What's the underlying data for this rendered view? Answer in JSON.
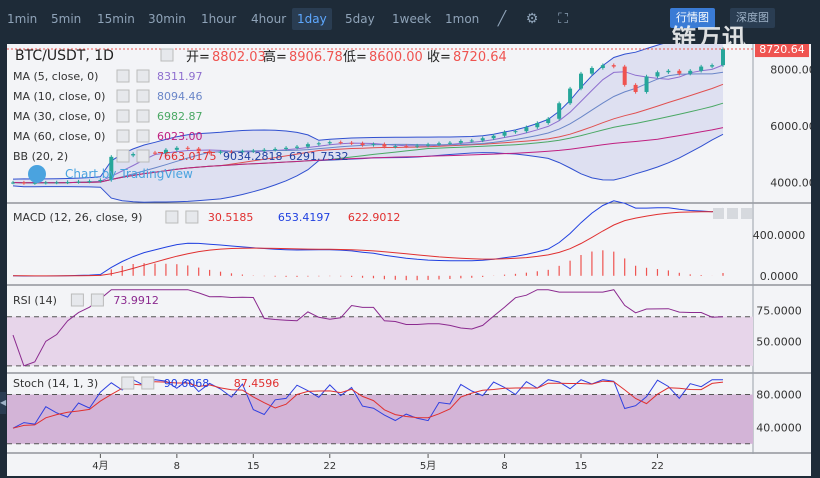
{
  "toolbar": {
    "timeframes": [
      "1min",
      "5min",
      "15min",
      "30min",
      "1hour",
      "4hour",
      "1day",
      "5day",
      "1week",
      "1mon"
    ],
    "active": "1day",
    "icons": [
      "chart-type-icon",
      "settings-icon",
      "fullscreen-icon"
    ]
  },
  "tabs": {
    "line": "行情图",
    "depth": "深度图"
  },
  "watermark": "链万讯",
  "symbol": {
    "title": "BTC/USDT, 1D",
    "open_label": "开=",
    "open": "8802.03",
    "high_label": "高=",
    "high": "8906.78",
    "low_label": "低=",
    "low": "8600.00",
    "close_label": "收=",
    "close": "8720.64",
    "last_price": "8720.64"
  },
  "studies": {
    "ma5": {
      "label": "MA (5, close, 0)",
      "value": "8311.97",
      "color": "#8e6fcf"
    },
    "ma10": {
      "label": "MA (10, close, 0)",
      "value": "8094.46",
      "color": "#6a86c8"
    },
    "ma30": {
      "label": "MA (30, close, 0)",
      "value": "6982.87",
      "color": "#4aa864"
    },
    "ma60": {
      "label": "MA (60, close, 0)",
      "value": "6023.00",
      "color": "#c02080"
    },
    "bb": {
      "label": "BB (20, 2)",
      "v1": "7663.0175",
      "v2": "9034.2818",
      "v3": "6291.7532"
    },
    "tv_logo": "Chart by TradingView",
    "macd": {
      "label": "MACD (12, 26, close, 9)",
      "v1": "30.5185",
      "v2": "653.4197",
      "v3": "622.9012"
    },
    "rsi": {
      "label": "RSI (14)",
      "value": "73.9912"
    },
    "stoch": {
      "label": "Stoch (14, 1, 3)",
      "v1": "90.6068",
      "v2": "87.4596"
    }
  },
  "axes": {
    "price_ticks": [
      "8000.00",
      "6000.00",
      "4000.00"
    ],
    "macd_ticks": [
      "400.0000",
      "0.0000"
    ],
    "rsi_ticks": [
      "75.0000",
      "50.0000"
    ],
    "stoch_ticks": [
      "80.0000",
      "40.0000"
    ],
    "x_ticks": [
      "4月",
      "8",
      "15",
      "22",
      "5月",
      "8",
      "15",
      "22"
    ]
  },
  "colors": {
    "up": "#26a69a",
    "down": "#ef5350",
    "band": "#c5c8e8",
    "rsi_fill": "#e7d5ea",
    "stoch_fill": "#d3b4d7"
  },
  "chart_data": {
    "type": "candlestick",
    "x_dates": [
      "03-24",
      "03-25",
      "03-26",
      "03-27",
      "03-28",
      "03-29",
      "03-30",
      "03-31",
      "04-01",
      "04-02",
      "04-03",
      "04-04",
      "04-05",
      "04-06",
      "04-07",
      "04-08",
      "04-09",
      "04-10",
      "04-11",
      "04-12",
      "04-13",
      "04-14",
      "04-15",
      "04-16",
      "04-17",
      "04-18",
      "04-19",
      "04-20",
      "04-21",
      "04-22",
      "04-23",
      "04-24",
      "04-25",
      "04-26",
      "04-27",
      "04-28",
      "04-29",
      "04-30",
      "05-01",
      "05-02",
      "05-03",
      "05-04",
      "05-05",
      "05-06",
      "05-07",
      "05-08",
      "05-09",
      "05-10",
      "05-11",
      "05-12",
      "05-13",
      "05-14",
      "05-15",
      "05-16",
      "05-17",
      "05-18",
      "05-19",
      "05-20",
      "05-21",
      "05-22",
      "05-23",
      "05-24",
      "05-25",
      "05-26",
      "05-27",
      "05-28"
    ],
    "close": [
      3990,
      3970,
      3980,
      3990,
      3995,
      4010,
      4025,
      4040,
      4080,
      4900,
      4950,
      5000,
      5050,
      5020,
      5150,
      5220,
      5190,
      5100,
      5050,
      5080,
      5070,
      5100,
      5120,
      5150,
      5180,
      5220,
      5260,
      5350,
      5380,
      5420,
      5400,
      5380,
      5320,
      5350,
      5260,
      5280,
      5270,
      5300,
      5340,
      5380,
      5400,
      5460,
      5480,
      5560,
      5650,
      5780,
      5810,
      5950,
      6100,
      6250,
      6800,
      7320,
      7850,
      8050,
      8150,
      8100,
      7450,
      7200,
      7750,
      7900,
      7950,
      7850,
      7950,
      8100,
      8150,
      8720
    ],
    "ma_ylim": [
      3300,
      8900
    ],
    "macd_ylim": [
      -80,
      700
    ],
    "rsi_ylim": [
      25,
      95
    ],
    "stoch_ylim": [
      10,
      105
    ],
    "rsi_levels": [
      70,
      30
    ],
    "stoch_levels": [
      80,
      20
    ]
  }
}
